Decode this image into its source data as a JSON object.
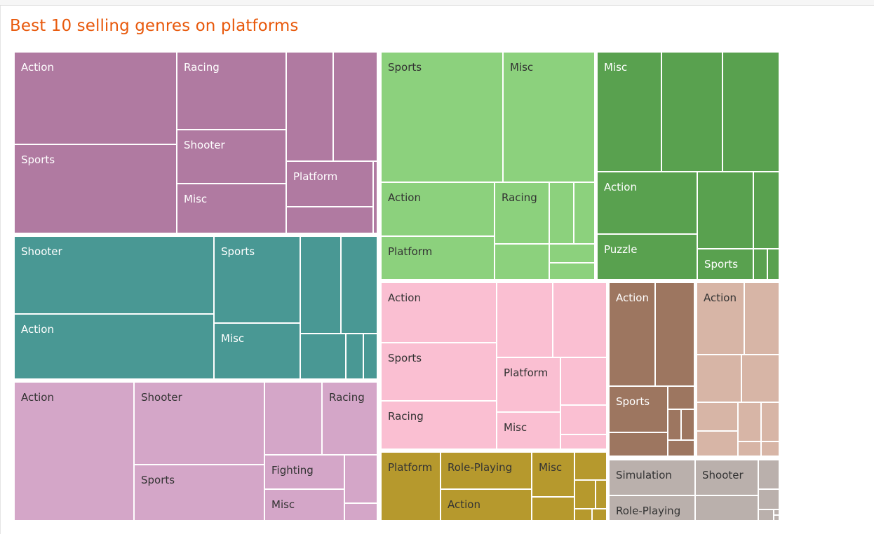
{
  "title": "Best 10 selling genres on platforms",
  "chart_data": {
    "type": "treemap",
    "title": "Best 10 selling genres on platforms",
    "groups": [
      {
        "color": "#b07aa1",
        "text": "#ffffff",
        "cells": [
          {
            "label": "Action"
          },
          {
            "label": "Sports"
          },
          {
            "label": "Racing"
          },
          {
            "label": "Shooter"
          },
          {
            "label": "Misc"
          },
          {
            "label": ""
          },
          {
            "label": ""
          },
          {
            "label": "Platform"
          },
          {
            "label": ""
          },
          {
            "label": ""
          }
        ]
      },
      {
        "color": "#8cd17d",
        "text": "#333333",
        "cells": [
          {
            "label": "Sports"
          },
          {
            "label": "Misc"
          },
          {
            "label": "Action"
          },
          {
            "label": "Platform"
          },
          {
            "label": "Racing"
          },
          {
            "label": ""
          },
          {
            "label": ""
          },
          {
            "label": ""
          },
          {
            "label": ""
          },
          {
            "label": ""
          },
          {
            "label": ""
          }
        ]
      },
      {
        "color": "#59a14f",
        "text": "#ffffff",
        "cells": [
          {
            "label": "Misc"
          },
          {
            "label": ""
          },
          {
            "label": ""
          },
          {
            "label": "Action"
          },
          {
            "label": "Puzzle"
          },
          {
            "label": ""
          },
          {
            "label": ""
          },
          {
            "label": "Sports"
          },
          {
            "label": ""
          },
          {
            "label": ""
          }
        ]
      },
      {
        "color": "#499894",
        "text": "#ffffff",
        "cells": [
          {
            "label": "Shooter"
          },
          {
            "label": "Action"
          },
          {
            "label": "Sports"
          },
          {
            "label": "Misc"
          },
          {
            "label": ""
          },
          {
            "label": ""
          },
          {
            "label": ""
          },
          {
            "label": ""
          },
          {
            "label": ""
          },
          {
            "label": ""
          }
        ]
      },
      {
        "color": "#fabfd2",
        "text": "#333333",
        "cells": [
          {
            "label": "Action"
          },
          {
            "label": "Sports"
          },
          {
            "label": "Racing"
          },
          {
            "label": ""
          },
          {
            "label": ""
          },
          {
            "label": "Platform"
          },
          {
            "label": ""
          },
          {
            "label": "Misc"
          },
          {
            "label": ""
          },
          {
            "label": ""
          }
        ]
      },
      {
        "color": "#9d7660",
        "text": "#ffffff",
        "cells": [
          {
            "label": "Action"
          },
          {
            "label": ""
          },
          {
            "label": "Sports"
          },
          {
            "label": ""
          },
          {
            "label": ""
          },
          {
            "label": ""
          },
          {
            "label": ""
          },
          {
            "label": ""
          }
        ]
      },
      {
        "color": "#d7b5a6",
        "text": "#333333",
        "cells": [
          {
            "label": "Action"
          },
          {
            "label": ""
          },
          {
            "label": ""
          },
          {
            "label": ""
          },
          {
            "label": ""
          },
          {
            "label": ""
          },
          {
            "label": ""
          },
          {
            "label": ""
          },
          {
            "label": ""
          },
          {
            "label": ""
          }
        ]
      },
      {
        "color": "#d4a6c8",
        "text": "#333333",
        "cells": [
          {
            "label": "Action"
          },
          {
            "label": "Shooter"
          },
          {
            "label": "Sports"
          },
          {
            "label": ""
          },
          {
            "label": "Racing"
          },
          {
            "label": "Fighting"
          },
          {
            "label": "Misc"
          },
          {
            "label": ""
          },
          {
            "label": ""
          }
        ]
      },
      {
        "color": "#b6992d",
        "text": "#333333",
        "cells": [
          {
            "label": "Platform"
          },
          {
            "label": "Role-Playing"
          },
          {
            "label": "Action"
          },
          {
            "label": "Misc"
          },
          {
            "label": ""
          },
          {
            "label": ""
          },
          {
            "label": ""
          },
          {
            "label": ""
          },
          {
            "label": ""
          },
          {
            "label": ""
          }
        ]
      },
      {
        "color": "#bab0ac",
        "text": "#333333",
        "cells": [
          {
            "label": "Simulation"
          },
          {
            "label": "Role-Playing"
          },
          {
            "label": "Shooter"
          },
          {
            "label": ""
          },
          {
            "label": ""
          },
          {
            "label": ""
          },
          {
            "label": ""
          },
          {
            "label": ""
          },
          {
            "label": ""
          }
        ]
      }
    ]
  }
}
